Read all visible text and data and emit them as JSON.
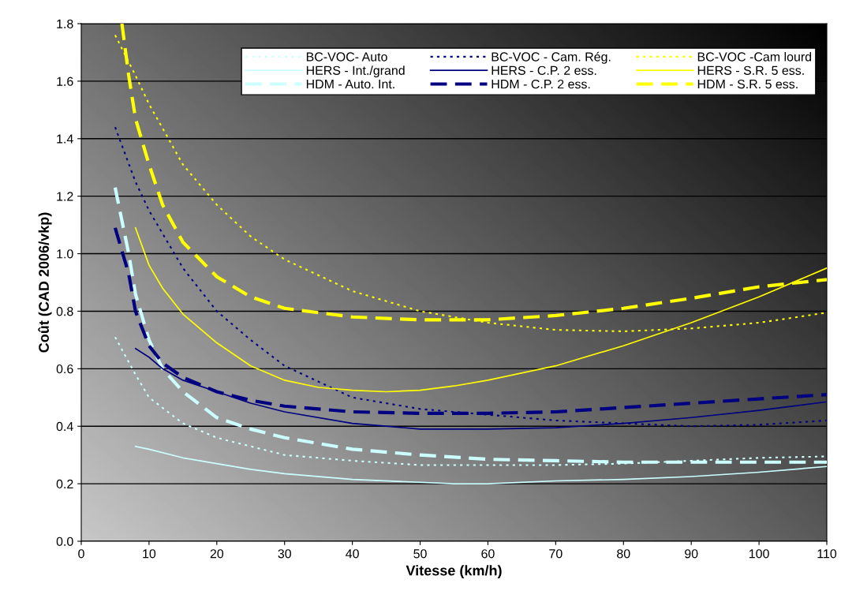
{
  "chart_data": {
    "type": "line",
    "xlabel": "Vitesse (km/h)",
    "ylabel": "Coût (CAD 2006/vkp)",
    "xlim": [
      0,
      110
    ],
    "xticks": [
      0,
      10,
      20,
      30,
      40,
      50,
      60,
      70,
      80,
      90,
      100,
      110
    ],
    "ylim": [
      0,
      1.8
    ],
    "yticks": [
      {
        "value": 0,
        "label": "0.0"
      },
      {
        "value": 0.2,
        "label": "0.2"
      },
      {
        "value": 0.4,
        "label": "0.4"
      },
      {
        "value": 0.6,
        "label": "0.6"
      },
      {
        "value": 0.8,
        "label": "0.8"
      },
      {
        "value": 1.0,
        "label": "1.0"
      },
      {
        "value": 1.2,
        "label": "1.2"
      },
      {
        "value": 1.4,
        "label": "1.4"
      },
      {
        "value": 1.6,
        "label": "1.6"
      },
      {
        "value": 1.8,
        "label": "1.8"
      }
    ],
    "grid": "y",
    "legend": "top",
    "marker": "none",
    "series": [
      {
        "name": "BC-VOC- Auto",
        "color": "#ccffff",
        "line_style": "dotted",
        "x": [
          5,
          8,
          10,
          15,
          20,
          25,
          30,
          40,
          50,
          60,
          70,
          80,
          90,
          100,
          110
        ],
        "values": [
          0.71,
          0.58,
          0.5,
          0.41,
          0.36,
          0.33,
          0.3,
          0.28,
          0.265,
          0.265,
          0.265,
          0.27,
          0.28,
          0.29,
          0.295
        ]
      },
      {
        "name": "HERS - Int./grand",
        "color": "#ccffff",
        "line_style": "solid",
        "x": [
          8,
          10,
          15,
          20,
          25,
          30,
          40,
          50,
          55,
          60,
          70,
          80,
          90,
          100,
          110
        ],
        "values": [
          0.33,
          0.32,
          0.29,
          0.27,
          0.25,
          0.235,
          0.215,
          0.205,
          0.2,
          0.2,
          0.21,
          0.215,
          0.225,
          0.24,
          0.26
        ]
      },
      {
        "name": "HDM - Auto. Int.",
        "color": "#ccffff",
        "line_style": "dashed",
        "x": [
          5,
          7,
          8,
          10,
          12,
          15,
          20,
          25,
          30,
          40,
          50,
          60,
          70,
          80,
          90,
          100,
          110
        ],
        "values": [
          1.23,
          1.0,
          0.86,
          0.7,
          0.6,
          0.52,
          0.43,
          0.39,
          0.36,
          0.32,
          0.3,
          0.285,
          0.28,
          0.275,
          0.275,
          0.275,
          0.275
        ]
      },
      {
        "name": "BC-VOC - Cam. Rég.",
        "color": "#000080",
        "line_style": "dotted",
        "x": [
          5,
          8,
          10,
          15,
          20,
          25,
          30,
          40,
          50,
          60,
          70,
          80,
          90,
          100,
          110
        ],
        "values": [
          1.44,
          1.25,
          1.15,
          0.95,
          0.8,
          0.7,
          0.61,
          0.5,
          0.46,
          0.44,
          0.42,
          0.41,
          0.4,
          0.405,
          0.42
        ]
      },
      {
        "name": "HERS - C.P. 2 ess.",
        "color": "#000080",
        "line_style": "solid",
        "x": [
          8,
          10,
          12,
          15,
          20,
          25,
          30,
          40,
          50,
          60,
          70,
          80,
          90,
          100,
          110
        ],
        "values": [
          0.67,
          0.64,
          0.6,
          0.56,
          0.52,
          0.48,
          0.45,
          0.41,
          0.39,
          0.39,
          0.395,
          0.41,
          0.43,
          0.455,
          0.485
        ]
      },
      {
        "name": "HDM - C.P. 2 ess.",
        "color": "#000080",
        "line_style": "dashed",
        "x": [
          5,
          7,
          8,
          10,
          12,
          15,
          20,
          25,
          30,
          40,
          50,
          60,
          70,
          80,
          90,
          100,
          110
        ],
        "values": [
          1.09,
          0.93,
          0.8,
          0.68,
          0.62,
          0.57,
          0.52,
          0.49,
          0.47,
          0.45,
          0.445,
          0.445,
          0.45,
          0.465,
          0.48,
          0.495,
          0.51
        ]
      },
      {
        "name": "BC-VOC -Cam lourd",
        "color": "#ffff00",
        "line_style": "dotted",
        "x": [
          5,
          8,
          10,
          15,
          20,
          25,
          30,
          40,
          50,
          60,
          70,
          80,
          90,
          100,
          110
        ],
        "values": [
          1.76,
          1.62,
          1.52,
          1.31,
          1.17,
          1.06,
          0.98,
          0.87,
          0.8,
          0.76,
          0.735,
          0.73,
          0.74,
          0.76,
          0.795
        ]
      },
      {
        "name": "HERS - S.R. 5 ess.",
        "color": "#ffff00",
        "line_style": "solid",
        "x": [
          8,
          10,
          12,
          15,
          20,
          25,
          30,
          35,
          40,
          45,
          50,
          55,
          60,
          70,
          80,
          90,
          100,
          110
        ],
        "values": [
          1.09,
          0.96,
          0.88,
          0.79,
          0.69,
          0.61,
          0.56,
          0.535,
          0.525,
          0.52,
          0.525,
          0.54,
          0.56,
          0.61,
          0.68,
          0.76,
          0.85,
          0.95
        ]
      },
      {
        "name": "HDM - S.R. 5 ess.",
        "color": "#ffff00",
        "line_style": "dashed",
        "x": [
          6,
          7,
          8,
          10,
          12,
          15,
          20,
          25,
          30,
          40,
          50,
          60,
          70,
          80,
          90,
          100,
          110
        ],
        "values": [
          1.8,
          1.62,
          1.47,
          1.31,
          1.17,
          1.04,
          0.92,
          0.85,
          0.81,
          0.78,
          0.77,
          0.77,
          0.785,
          0.81,
          0.845,
          0.885,
          0.91
        ]
      }
    ]
  }
}
